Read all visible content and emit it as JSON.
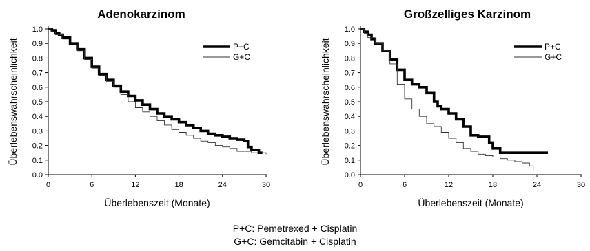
{
  "chart_data": [
    {
      "type": "line",
      "title": "Adenokarzinom",
      "xlabel": "Überlebenszeit (Monate)",
      "ylabel": "Überlebenswahrscheinlichkeit",
      "xlim": [
        0,
        30
      ],
      "ylim": [
        0,
        1
      ],
      "x_ticks": [
        "0",
        "6",
        "12",
        "18",
        "24",
        "30"
      ],
      "y_ticks": [
        "0.0",
        "0.1",
        "0.2",
        "0.3",
        "0.4",
        "0.5",
        "0.6",
        "0.7",
        "0.8",
        "0.9",
        "1.0"
      ],
      "step": true,
      "grid": false,
      "legend_position": "top-right",
      "series": [
        {
          "name": "P+C",
          "style": "thick",
          "x": [
            0,
            0.5,
            1,
            1.5,
            2,
            3,
            4,
            5,
            6,
            7,
            8,
            9,
            10,
            11,
            12,
            13,
            14,
            15,
            16,
            17,
            18,
            19,
            20,
            21,
            22,
            23,
            24,
            25,
            26,
            27,
            27.5,
            28,
            29,
            29.5
          ],
          "y": [
            1.0,
            0.99,
            0.97,
            0.96,
            0.94,
            0.9,
            0.86,
            0.8,
            0.74,
            0.69,
            0.65,
            0.61,
            0.57,
            0.54,
            0.51,
            0.48,
            0.45,
            0.42,
            0.4,
            0.38,
            0.36,
            0.34,
            0.32,
            0.3,
            0.28,
            0.27,
            0.26,
            0.25,
            0.24,
            0.23,
            0.19,
            0.17,
            0.15,
            0.15
          ]
        },
        {
          "name": "G+C",
          "style": "thin",
          "x": [
            0,
            0.5,
            1,
            2,
            3,
            4,
            5,
            6,
            7,
            8,
            9,
            10,
            11,
            12,
            13,
            14,
            15,
            16,
            17,
            18,
            19,
            20,
            21,
            22,
            23,
            24,
            25,
            26,
            28,
            30
          ],
          "y": [
            1.0,
            0.98,
            0.96,
            0.93,
            0.89,
            0.85,
            0.79,
            0.73,
            0.68,
            0.64,
            0.6,
            0.55,
            0.5,
            0.46,
            0.43,
            0.4,
            0.37,
            0.34,
            0.31,
            0.29,
            0.27,
            0.25,
            0.23,
            0.22,
            0.2,
            0.19,
            0.18,
            0.16,
            0.15,
            0.14
          ]
        }
      ]
    },
    {
      "type": "line",
      "title": "Großzelliges Karzinom",
      "xlabel": "Überlebenszeit (Monate)",
      "ylabel": "Überlebenswahrscheinlichkeit",
      "xlim": [
        0,
        30
      ],
      "ylim": [
        0,
        1
      ],
      "x_ticks": [
        "0",
        "6",
        "12",
        "18",
        "24",
        "30"
      ],
      "y_ticks": [
        "0.0",
        "0.1",
        "0.2",
        "0.3",
        "0.4",
        "0.5",
        "0.6",
        "0.7",
        "0.8",
        "0.9",
        "1.0"
      ],
      "step": true,
      "grid": false,
      "legend_position": "top-right",
      "series": [
        {
          "name": "P+C",
          "style": "thick",
          "x": [
            0,
            0.5,
            1,
            1.5,
            2,
            3,
            4,
            5,
            6,
            7,
            8,
            9,
            10,
            10.5,
            11,
            12,
            13,
            14,
            15,
            16,
            17,
            17.5,
            18,
            19,
            20,
            22,
            24,
            25.5
          ],
          "y": [
            1.0,
            0.98,
            0.96,
            0.93,
            0.9,
            0.85,
            0.79,
            0.72,
            0.65,
            0.62,
            0.6,
            0.56,
            0.5,
            0.47,
            0.45,
            0.42,
            0.38,
            0.33,
            0.27,
            0.26,
            0.26,
            0.22,
            0.18,
            0.15,
            0.15,
            0.15,
            0.15,
            0.15
          ]
        },
        {
          "name": "G+C",
          "style": "thin",
          "x": [
            0,
            0.5,
            1,
            2,
            3,
            4,
            5,
            6,
            7,
            8,
            9,
            10,
            11,
            12,
            13,
            14,
            15,
            16,
            17,
            18,
            19,
            20,
            21,
            22,
            23,
            23.5
          ],
          "y": [
            1.0,
            0.97,
            0.94,
            0.9,
            0.85,
            0.76,
            0.62,
            0.52,
            0.45,
            0.4,
            0.35,
            0.33,
            0.29,
            0.25,
            0.22,
            0.18,
            0.16,
            0.14,
            0.13,
            0.12,
            0.11,
            0.1,
            0.09,
            0.08,
            0.06,
            0.03
          ]
        }
      ]
    }
  ],
  "footnote": {
    "line1": "P+C: Pemetrexed + Cisplatin",
    "line2": "G+C: Gemcitabin + Cisplatin"
  }
}
